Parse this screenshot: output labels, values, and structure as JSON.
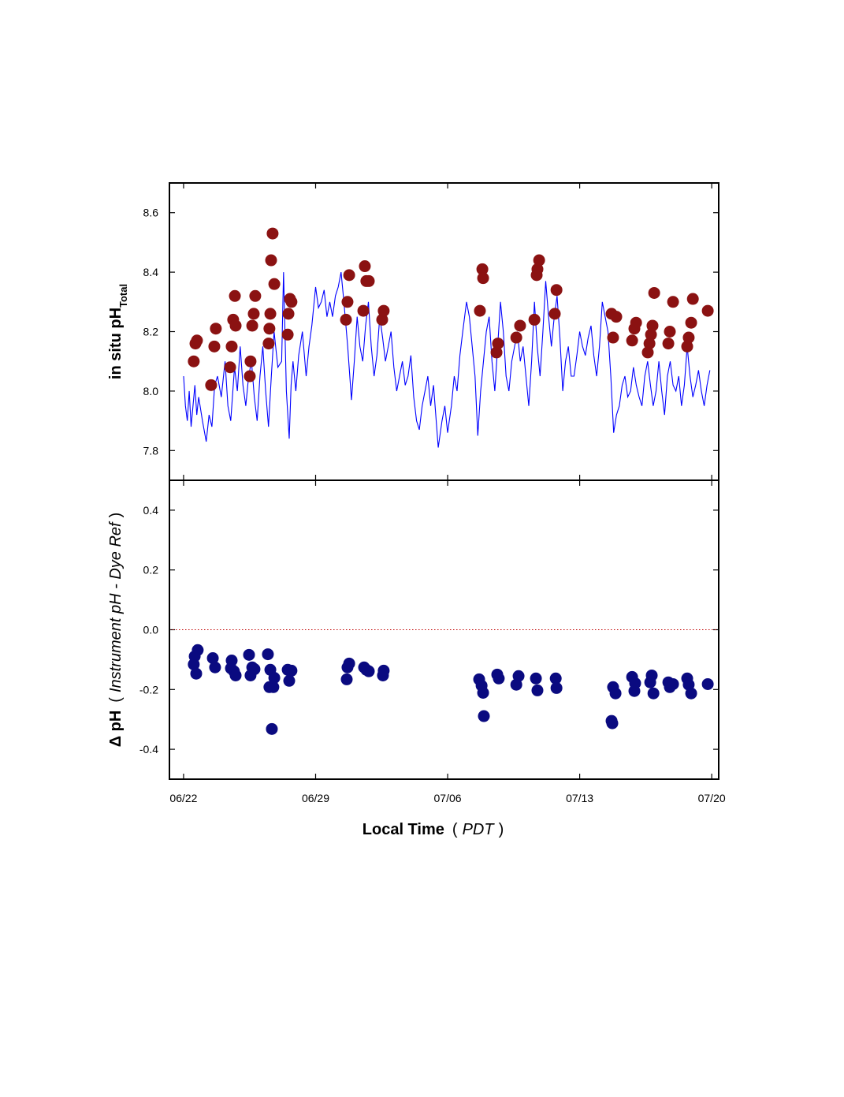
{
  "chart_data": [
    {
      "type": "combo",
      "xlim": [
        -0.75,
        28.37
      ],
      "xticks": [
        0,
        7,
        14,
        21,
        28
      ],
      "ylim": [
        7.7,
        8.7
      ],
      "yticks": [
        {
          "value": 7.8,
          "label": "7.8"
        },
        {
          "value": 8,
          "label": "8.0"
        },
        {
          "value": 8.2,
          "label": "8.2"
        },
        {
          "value": 8.4,
          "label": "8.4"
        },
        {
          "value": 8.6,
          "label": "8.6"
        }
      ],
      "ylabel": {
        "main": "in situ pH",
        "subscript": "Total"
      },
      "series": [
        {
          "type": "line",
          "color": "#0000ff",
          "x": [
            0,
            0.1,
            0.2,
            0.3,
            0.4,
            0.5,
            0.6,
            0.7,
            0.8,
            1.0,
            1.2,
            1.35,
            1.5,
            1.65,
            1.8,
            2.0,
            2.2,
            2.35,
            2.5,
            2.7,
            2.85,
            3.0,
            3.15,
            3.3,
            3.45,
            3.6,
            3.75,
            3.9,
            4.05,
            4.2,
            4.35,
            4.5,
            4.65,
            4.8,
            5.0,
            5.2,
            5.3,
            5.45,
            5.6,
            5.7,
            5.8,
            5.95,
            6.1,
            6.3,
            6.5,
            6.65,
            6.8,
            7.0,
            7.15,
            7.3,
            7.45,
            7.6,
            7.75,
            7.9,
            8.05,
            8.2,
            8.35,
            8.5,
            8.7,
            8.9,
            9.05,
            9.2,
            9.35,
            9.5,
            9.65,
            9.8,
            9.95,
            10.1,
            10.25,
            10.4,
            10.55,
            10.7,
            10.85,
            11.0,
            11.15,
            11.3,
            11.45,
            11.6,
            11.75,
            11.9,
            12.05,
            12.2,
            12.35,
            12.5,
            12.65,
            12.8,
            12.95,
            13.1,
            13.25,
            13.5,
            13.7,
            13.85,
            14.0,
            14.2,
            14.35,
            14.5,
            14.65,
            14.8,
            15.0,
            15.15,
            15.3,
            15.45,
            15.6,
            15.75,
            15.9,
            16.05,
            16.2,
            16.35,
            16.5,
            16.65,
            16.8,
            16.95,
            17.1,
            17.25,
            17.4,
            17.55,
            17.7,
            17.85,
            18.0,
            18.15,
            18.3,
            18.45,
            18.6,
            18.75,
            18.9,
            19.05,
            19.2,
            19.35,
            19.5,
            19.65,
            19.8,
            19.95,
            20.1,
            20.25,
            20.4,
            20.55,
            20.7,
            20.85,
            21.0,
            21.15,
            21.3,
            21.45,
            21.6,
            21.75,
            21.9,
            22.05,
            22.2,
            22.35,
            22.5,
            22.65,
            22.8,
            22.95,
            23.1,
            23.25,
            23.4,
            23.55,
            23.7,
            23.85,
            24.0,
            24.15,
            24.3,
            24.45,
            24.6,
            24.75,
            24.9,
            25.05,
            25.2,
            25.35,
            25.5,
            25.65,
            25.8,
            25.95,
            26.1,
            26.25,
            26.4,
            26.55,
            26.7,
            26.85,
            27.0,
            27.15,
            27.3,
            27.45,
            27.6,
            27.75,
            27.9
          ],
          "values": [
            8.05,
            7.95,
            7.9,
            8.0,
            7.88,
            7.95,
            8.02,
            7.92,
            7.98,
            7.9,
            7.83,
            7.92,
            7.88,
            8.02,
            8.05,
            7.98,
            8.1,
            7.95,
            7.9,
            8.08,
            8.0,
            8.15,
            8.02,
            7.95,
            8.05,
            8.1,
            7.98,
            7.9,
            8.05,
            8.15,
            8.0,
            7.88,
            8.05,
            8.2,
            8.08,
            8.1,
            8.4,
            8.0,
            7.84,
            8.02,
            8.1,
            8.0,
            8.12,
            8.2,
            8.05,
            8.15,
            8.22,
            8.35,
            8.28,
            8.3,
            8.34,
            8.25,
            8.3,
            8.25,
            8.32,
            8.35,
            8.4,
            8.3,
            8.15,
            7.97,
            8.1,
            8.25,
            8.15,
            8.1,
            8.22,
            8.3,
            8.15,
            8.05,
            8.12,
            8.25,
            8.18,
            8.1,
            8.15,
            8.2,
            8.08,
            8.0,
            8.05,
            8.1,
            8.02,
            8.05,
            8.12,
            7.98,
            7.9,
            7.87,
            7.95,
            8.0,
            8.05,
            7.95,
            8.02,
            7.81,
            7.9,
            7.95,
            7.86,
            7.95,
            8.05,
            8.0,
            8.12,
            8.2,
            8.3,
            8.25,
            8.15,
            8.05,
            7.85,
            8.0,
            8.1,
            8.2,
            8.25,
            8.1,
            8.0,
            8.15,
            8.3,
            8.2,
            8.05,
            8.0,
            8.1,
            8.15,
            8.2,
            8.1,
            8.15,
            8.05,
            7.95,
            8.1,
            8.3,
            8.15,
            8.05,
            8.2,
            8.37,
            8.25,
            8.15,
            8.25,
            8.32,
            8.18,
            8.0,
            8.1,
            8.15,
            8.05,
            8.05,
            8.12,
            8.2,
            8.15,
            8.12,
            8.18,
            8.22,
            8.12,
            8.05,
            8.15,
            8.3,
            8.25,
            8.2,
            8.05,
            7.86,
            7.92,
            7.95,
            8.02,
            8.05,
            7.98,
            8.0,
            8.08,
            8.02,
            7.98,
            7.95,
            8.05,
            8.1,
            8.02,
            7.95,
            8.0,
            8.1,
            8.0,
            7.92,
            8.05,
            8.1,
            8.02,
            8.0,
            8.05,
            7.95,
            8.02,
            8.15,
            8.05,
            7.98,
            8.02,
            8.07,
            8.0,
            7.95,
            8.02,
            8.07
          ]
        },
        {
          "type": "scatter",
          "color": "#8b1212",
          "x": [
            0.54,
            0.63,
            0.71,
            1.46,
            1.63,
            1.71,
            2.47,
            2.55,
            2.63,
            2.72,
            2.76,
            3.51,
            3.55,
            3.64,
            3.72,
            3.8,
            4.51,
            4.55,
            4.6,
            4.64,
            4.72,
            4.81,
            5.52,
            5.56,
            5.64,
            5.72,
            8.61,
            8.69,
            8.78,
            9.53,
            9.61,
            9.69,
            9.82,
            10.53,
            10.61,
            15.71,
            15.84,
            15.88,
            16.59,
            16.67,
            17.64,
            17.84,
            18.6,
            18.72,
            18.76,
            18.85,
            19.68,
            19.77,
            22.69,
            22.77,
            22.94,
            23.78,
            23.9,
            23.99,
            24.61,
            24.7,
            24.78,
            24.86,
            24.95,
            25.7,
            25.78,
            25.95,
            26.7,
            26.78,
            26.91,
            27.0,
            27.79
          ],
          "values": [
            8.1,
            8.16,
            8.17,
            8.02,
            8.15,
            8.21,
            8.08,
            8.15,
            8.24,
            8.32,
            8.22,
            8.05,
            8.1,
            8.22,
            8.26,
            8.32,
            8.16,
            8.21,
            8.26,
            8.44,
            8.53,
            8.36,
            8.19,
            8.26,
            8.31,
            8.3,
            8.24,
            8.3,
            8.39,
            8.27,
            8.42,
            8.37,
            8.37,
            8.24,
            8.27,
            8.27,
            8.41,
            8.38,
            8.13,
            8.16,
            8.18,
            8.22,
            8.24,
            8.39,
            8.41,
            8.44,
            8.26,
            8.34,
            8.26,
            8.18,
            8.25,
            8.17,
            8.21,
            8.23,
            8.13,
            8.16,
            8.19,
            8.22,
            8.33,
            8.16,
            8.2,
            8.3,
            8.15,
            8.18,
            8.23,
            8.31,
            8.27
          ]
        }
      ]
    },
    {
      "type": "scatter",
      "xlim": [
        -0.75,
        28.37
      ],
      "xticks": [
        {
          "value": 0,
          "label": "06/22"
        },
        {
          "value": 7,
          "label": "06/29"
        },
        {
          "value": 14,
          "label": "07/06"
        },
        {
          "value": 21,
          "label": "07/13"
        },
        {
          "value": 28,
          "label": "07/20"
        }
      ],
      "ylim": [
        -0.5,
        0.5
      ],
      "yticks": [
        -0.4,
        -0.2,
        {
          "value": 0,
          "label": "0.0"
        },
        0.2,
        0.4
      ],
      "hline": 0,
      "hline_color": "#c00000",
      "ylabel": {
        "main": "Δ pH",
        "open": "(",
        "note": "Instrument pH - Dye Ref",
        "close": ")"
      },
      "xlabel": {
        "main": "Local Time",
        "open": "(",
        "note": "PDT",
        "close": ")"
      },
      "series": [
        {
          "type": "scatter",
          "color": "#0a0a80",
          "x": [
            0.54,
            0.59,
            0.67,
            0.75,
            1.55,
            1.67,
            2.51,
            2.55,
            2.67,
            2.76,
            3.47,
            3.55,
            3.64,
            3.76,
            4.47,
            4.55,
            4.6,
            4.68,
            4.76,
            4.81,
            5.52,
            5.6,
            5.72,
            8.65,
            8.69,
            8.78,
            9.57,
            9.69,
            9.82,
            10.57,
            10.61,
            15.67,
            15.8,
            15.88,
            15.92,
            16.63,
            16.71,
            17.64,
            17.76,
            18.68,
            18.76,
            19.73,
            19.77,
            22.69,
            22.73,
            22.77,
            22.9,
            23.78,
            23.9,
            23.94,
            24.74,
            24.82,
            24.91,
            25.7,
            25.78,
            25.95,
            26.7,
            26.78,
            26.91,
            27.79
          ],
          "values": [
            -0.116,
            -0.089,
            -0.147,
            -0.068,
            -0.095,
            -0.126,
            -0.129,
            -0.103,
            -0.139,
            -0.153,
            -0.084,
            -0.153,
            -0.126,
            -0.132,
            -0.082,
            -0.192,
            -0.134,
            -0.332,
            -0.192,
            -0.161,
            -0.134,
            -0.171,
            -0.137,
            -0.166,
            -0.126,
            -0.113,
            -0.126,
            -0.134,
            -0.139,
            -0.153,
            -0.137,
            -0.166,
            -0.187,
            -0.211,
            -0.289,
            -0.15,
            -0.163,
            -0.184,
            -0.155,
            -0.163,
            -0.203,
            -0.163,
            -0.195,
            -0.305,
            -0.313,
            -0.192,
            -0.213,
            -0.158,
            -0.205,
            -0.179,
            -0.176,
            -0.153,
            -0.213,
            -0.176,
            -0.192,
            -0.182,
            -0.163,
            -0.184,
            -0.213,
            -0.182
          ]
        }
      ]
    }
  ]
}
